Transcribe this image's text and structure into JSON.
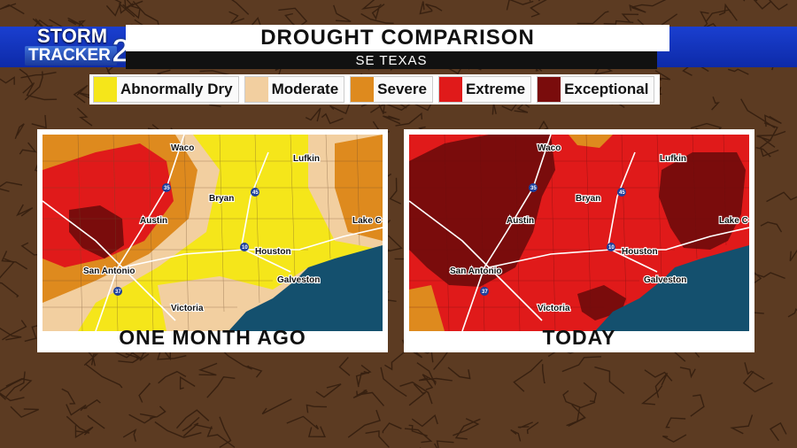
{
  "header": {
    "title": "DROUGHT COMPARISON",
    "subtitle": "SE TEXAS"
  },
  "logo": {
    "line1": "STORM",
    "line2": "TRACKER",
    "number": "2"
  },
  "legend": [
    {
      "label": "Abnormally Dry",
      "color": "#f5e61a"
    },
    {
      "label": "Moderate",
      "color": "#f2cfa0"
    },
    {
      "label": "Severe",
      "color": "#de8a1e"
    },
    {
      "label": "Extreme",
      "color": "#e01a1a"
    },
    {
      "label": "Exceptional",
      "color": "#7a0c0c"
    }
  ],
  "panels": [
    {
      "caption": "ONE MONTH AGO"
    },
    {
      "caption": "TODAY"
    }
  ],
  "cities": {
    "waco": "Waco",
    "lufkin": "Lufkin",
    "bryan": "Bryan",
    "austin": "Austin",
    "lake_charles": "Lake C",
    "houston": "Houston",
    "san_antonio": "San Antonio",
    "galveston": "Galveston",
    "victoria": "Victoria"
  },
  "highways": {
    "i35": "35",
    "i45": "45",
    "i10": "10",
    "i37": "37"
  },
  "colors": {
    "gulf": "#14506e",
    "band": "#1a3fd0"
  }
}
